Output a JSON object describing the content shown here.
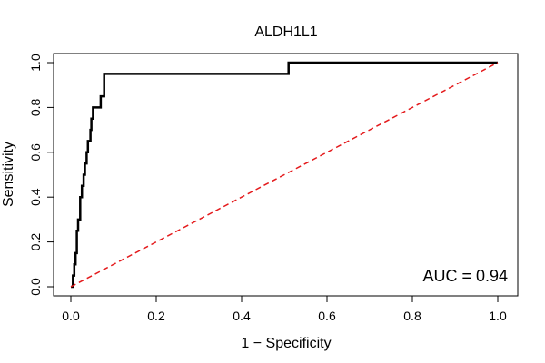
{
  "chart_data": {
    "type": "line",
    "title": "ALDH1L1",
    "xlabel": "1 − Specificity",
    "ylabel": "Sensitivity",
    "xlim": [
      0.0,
      1.0
    ],
    "ylim": [
      0.0,
      1.0
    ],
    "x_ticks": [
      "0.0",
      "0.2",
      "0.4",
      "0.6",
      "0.8",
      "1.0"
    ],
    "y_ticks": [
      "0.0",
      "0.2",
      "0.4",
      "0.6",
      "0.8",
      "1.0"
    ],
    "grid": false,
    "legend": "none",
    "series": [
      {
        "style": "solid",
        "color": "#000000",
        "x": [
          0.0,
          0.005,
          0.005,
          0.008,
          0.008,
          0.011,
          0.011,
          0.014,
          0.014,
          0.017,
          0.017,
          0.022,
          0.022,
          0.026,
          0.026,
          0.03,
          0.03,
          0.033,
          0.033,
          0.037,
          0.037,
          0.04,
          0.04,
          0.046,
          0.046,
          0.048,
          0.048,
          0.052,
          0.052,
          0.055,
          0.055,
          0.07,
          0.07,
          0.078,
          0.078,
          0.51,
          0.51,
          1.0
        ],
        "y": [
          0.0,
          0.0,
          0.05,
          0.05,
          0.1,
          0.1,
          0.15,
          0.15,
          0.25,
          0.25,
          0.3,
          0.3,
          0.4,
          0.4,
          0.45,
          0.45,
          0.5,
          0.5,
          0.55,
          0.55,
          0.6,
          0.6,
          0.65,
          0.65,
          0.7,
          0.7,
          0.75,
          0.75,
          0.8,
          0.8,
          0.8,
          0.8,
          0.85,
          0.85,
          0.95,
          0.95,
          1.0,
          1.0
        ]
      },
      {
        "style": "dashed",
        "color": "#e41a1c",
        "x": [
          0.0,
          1.0
        ],
        "y": [
          0.0,
          1.0
        ]
      }
    ],
    "annotation": "AUC = 0.94"
  }
}
